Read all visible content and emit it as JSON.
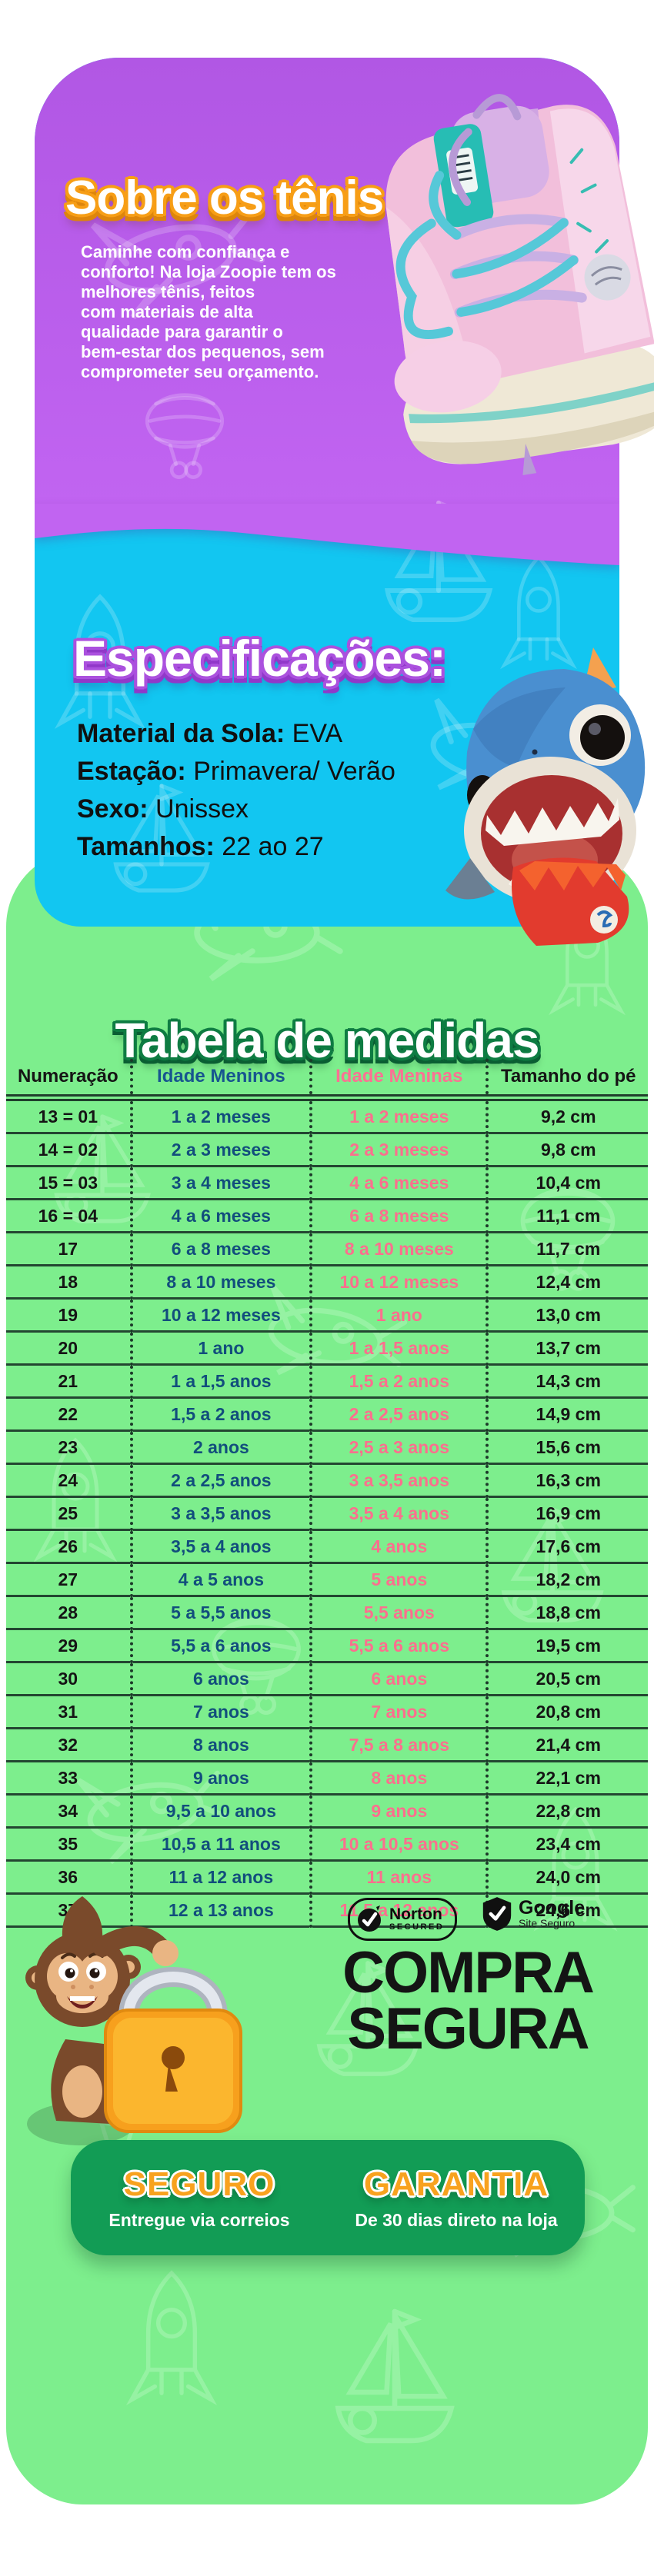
{
  "colors": {
    "purple_section": "#b85ce9",
    "cyan_section": "#12c6f1",
    "green_section": "#7dee8d",
    "banner_green": "#129c55",
    "accent_orange": "#f8a21e",
    "table_boys_blue": "#124e7c",
    "table_girls_pink": "#fb6f8e"
  },
  "about": {
    "title": "Sobre os tênis",
    "text_before_brand": "Caminhe com confiança e\nconforto! Na loja ",
    "brand": "Zoopie",
    "text_after_brand": " tem os melhores tênis, feitos\ncom materiais de alta\nqualidade para garantir o\nbem-estar dos pequenos, sem\ncomprometer seu orçamento."
  },
  "specs": {
    "title": "Especificações:",
    "items": [
      {
        "label": "Material da Sola:",
        "value": "EVA"
      },
      {
        "label": "Estação:",
        "value": "Primavera/ Verão"
      },
      {
        "label": "Sexo:",
        "value": "Unissex"
      },
      {
        "label": "Tamanhos:",
        "value": "22 ao 27"
      }
    ]
  },
  "size_table": {
    "title": "Tabela de medidas",
    "columns": [
      "Numeração",
      "Idade Meninos",
      "Idade Meninas",
      "Tamanho do pé"
    ],
    "rows": [
      [
        "13 = 01",
        "1 a 2 meses",
        "1 a 2 meses",
        "9,2 cm"
      ],
      [
        "14 = 02",
        "2 a 3 meses",
        "2 a 3 meses",
        "9,8 cm"
      ],
      [
        "15 = 03",
        "3 a 4 meses",
        "4 a 6 meses",
        "10,4 cm"
      ],
      [
        "16 = 04",
        "4 a 6 meses",
        "6 a 8 meses",
        "11,1 cm"
      ],
      [
        "17",
        "6 a 8 meses",
        "8 a 10 meses",
        "11,7 cm"
      ],
      [
        "18",
        "8 a 10 meses",
        "10 a 12 meses",
        "12,4 cm"
      ],
      [
        "19",
        "10 a 12 meses",
        "1 ano",
        "13,0 cm"
      ],
      [
        "20",
        "1 ano",
        "1 a 1,5 anos",
        "13,7 cm"
      ],
      [
        "21",
        "1 a 1,5 anos",
        "1,5 a 2 anos",
        "14,3 cm"
      ],
      [
        "22",
        "1,5 a 2 anos",
        "2 a 2,5 anos",
        "14,9 cm"
      ],
      [
        "23",
        "2 anos",
        "2,5 a 3 anos",
        "15,6 cm"
      ],
      [
        "24",
        "2 a 2,5 anos",
        "3 a 3,5 anos",
        "16,3 cm"
      ],
      [
        "25",
        "3 a 3,5 anos",
        "3,5 a 4 anos",
        "16,9 cm"
      ],
      [
        "26",
        "3,5 a 4 anos",
        "4 anos",
        "17,6 cm"
      ],
      [
        "27",
        "4 a 5 anos",
        "5 anos",
        "18,2 cm"
      ],
      [
        "28",
        "5 a 5,5 anos",
        "5,5 anos",
        "18,8 cm"
      ],
      [
        "29",
        "5,5 a 6 anos",
        "5,5 a 6 anos",
        "19,5 cm"
      ],
      [
        "30",
        "6 anos",
        "6 anos",
        "20,5 cm"
      ],
      [
        "31",
        "7 anos",
        "7 anos",
        "20,8 cm"
      ],
      [
        "32",
        "8 anos",
        "7,5 a 8 anos",
        "21,4 cm"
      ],
      [
        "33",
        "9 anos",
        "8 anos",
        "22,1 cm"
      ],
      [
        "34",
        "9,5 a 10 anos",
        "9 anos",
        "22,8 cm"
      ],
      [
        "35",
        "10,5 a 11 anos",
        "10 a 10,5 anos",
        "23,4 cm"
      ],
      [
        "36",
        "11 a 12 anos",
        "11 anos",
        "24,0 cm"
      ],
      [
        "37",
        "12 a 13 anos",
        "11,5 a 12 anos",
        "24,6 cm"
      ]
    ]
  },
  "security": {
    "norton_line1": "Norton",
    "norton_line2": "SECURED",
    "google_line1": "Google",
    "google_line2": "Site Seguro",
    "headline_line1": "COMPRA",
    "headline_line2": "SEGURA"
  },
  "footer_banner": {
    "left_title": "SEGURO",
    "left_subtitle": "Entregue via correios",
    "right_title": "GARANTIA",
    "right_subtitle": "De 30 dias direto na loja"
  }
}
